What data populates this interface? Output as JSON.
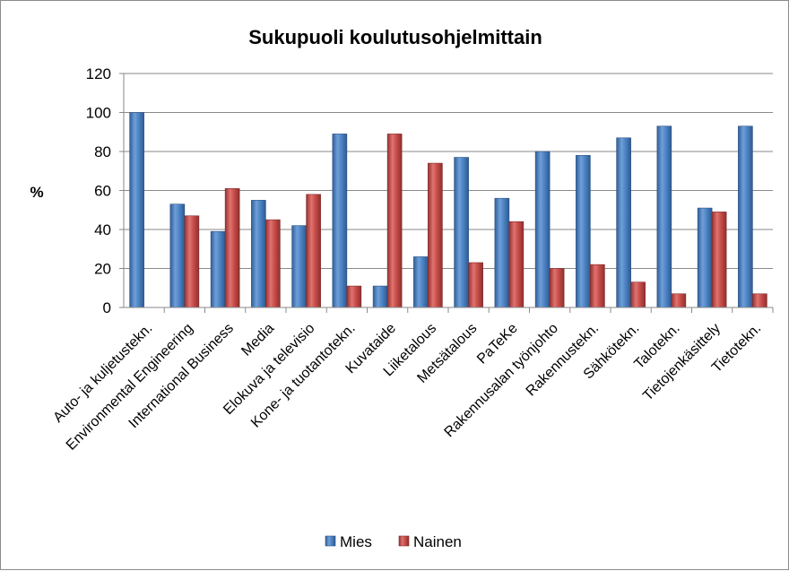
{
  "chart_data": {
    "type": "bar",
    "title": "Sukupuoli koulutusohjelmittain",
    "ylabel": "%",
    "xlabel": "",
    "ylim": [
      0,
      120
    ],
    "yticks": [
      0,
      20,
      40,
      60,
      80,
      100,
      120
    ],
    "grid": true,
    "legend": "bottom",
    "categories": [
      "Auto- ja kuljetustekn.",
      "Environmental Engineering",
      "International Business",
      "Media",
      "Elokuva ja televisio",
      "Kone- ja tuotantotekn.",
      "Kuvataide",
      "Liiketalous",
      "Metsätalous",
      "PaTeKe",
      "Rakennusalan työnjohto",
      "Rakennustekn.",
      "Sähkötekn.",
      "Talotekn.",
      "Tietojenkäsittely",
      "Tietotekn."
    ],
    "series": [
      {
        "name": "Mies",
        "color": "#4a7ebb",
        "values": [
          100,
          53,
          39,
          55,
          42,
          89,
          11,
          26,
          77,
          56,
          80,
          78,
          87,
          93,
          51,
          93
        ]
      },
      {
        "name": "Nainen",
        "color": "#be4b48",
        "values": [
          0,
          47,
          61,
          45,
          58,
          11,
          89,
          74,
          23,
          44,
          20,
          22,
          13,
          7,
          49,
          7
        ]
      }
    ]
  }
}
